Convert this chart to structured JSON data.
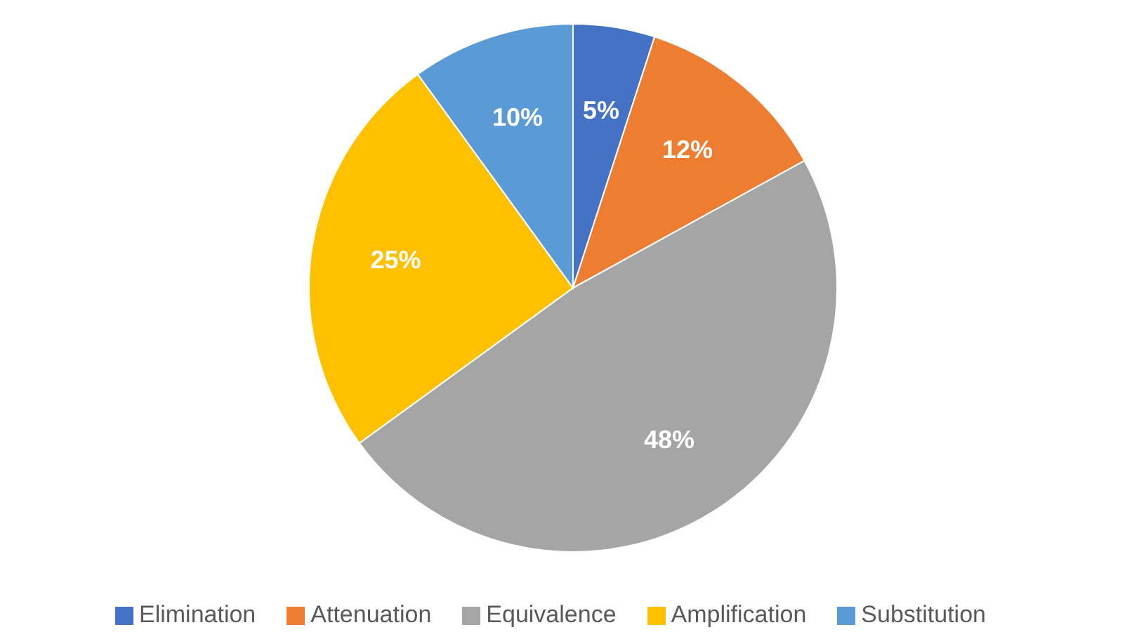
{
  "chart_data": {
    "type": "pie",
    "categories": [
      "Elimination",
      "Attenuation",
      "Equivalence",
      "Amplification",
      "Substitution"
    ],
    "values": [
      5,
      12,
      48,
      25,
      10
    ],
    "colors": [
      "#4472c4",
      "#ed7d31",
      "#a5a5a5",
      "#ffc000",
      "#5b9bd5"
    ],
    "value_labels": [
      "5%",
      "12%",
      "48%",
      "25%",
      "10%"
    ],
    "legend": "bottom"
  }
}
